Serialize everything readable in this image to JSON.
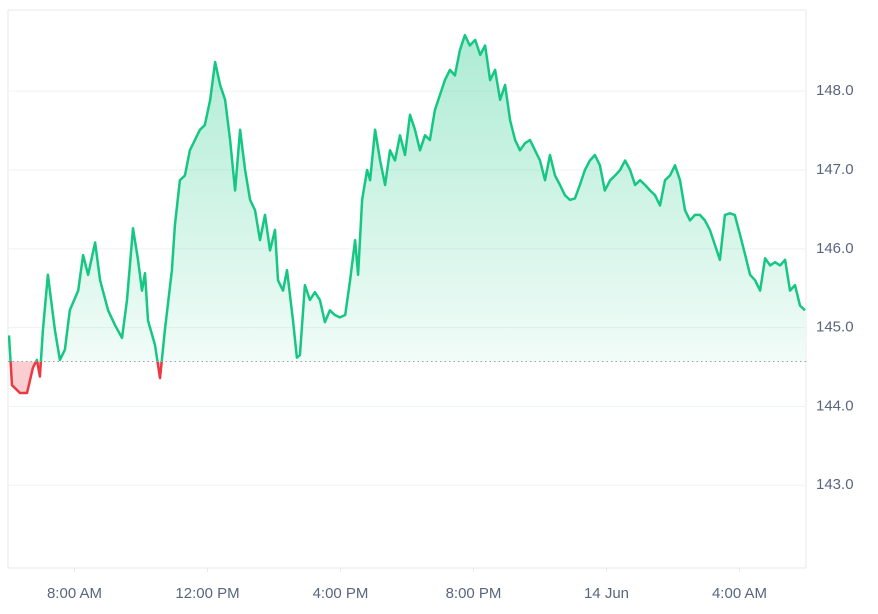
{
  "chart_data": {
    "type": "line",
    "x": [
      6.03,
      6.12,
      6.36,
      6.57,
      6.75,
      6.87,
      6.96,
      7.05,
      7.2,
      7.41,
      7.56,
      7.71,
      7.86,
      8.11,
      8.26,
      8.41,
      8.62,
      8.77,
      9.01,
      9.22,
      9.43,
      9.58,
      9.76,
      9.91,
      10.03,
      10.12,
      10.21,
      10.42,
      10.57,
      10.72,
      10.93,
      11.02,
      11.17,
      11.32,
      11.47,
      11.62,
      11.77,
      11.92,
      12.08,
      12.23,
      12.38,
      12.53,
      12.68,
      12.83,
      12.98,
      13.13,
      13.28,
      13.43,
      13.58,
      13.73,
      13.88,
      14.03,
      14.12,
      14.27,
      14.39,
      14.57,
      14.69,
      14.78,
      14.93,
      15.08,
      15.23,
      15.38,
      15.53,
      15.68,
      15.83,
      15.98,
      16.14,
      16.29,
      16.44,
      16.53,
      16.65,
      16.8,
      16.89,
      17.04,
      17.19,
      17.34,
      17.49,
      17.64,
      17.79,
      17.94,
      18.09,
      18.24,
      18.39,
      18.54,
      18.69,
      18.84,
      18.99,
      19.14,
      19.29,
      19.44,
      19.59,
      19.74,
      19.89,
      20.05,
      20.2,
      20.35,
      20.5,
      20.65,
      20.8,
      20.95,
      21.1,
      21.25,
      21.4,
      21.55,
      21.7,
      21.85,
      22.0,
      22.15,
      22.3,
      22.45,
      22.6,
      22.75,
      22.9,
      23.05,
      23.2,
      23.35,
      23.5,
      23.65,
      23.8,
      23.95,
      24.11,
      24.26,
      24.41,
      24.56,
      24.71,
      24.86,
      25.01,
      25.16,
      25.31,
      25.46,
      25.61,
      25.76,
      25.91,
      26.06,
      26.21,
      26.36,
      26.51,
      26.66,
      26.81,
      26.96,
      27.11,
      27.26,
      27.41,
      27.56,
      27.71,
      27.86,
      28.02,
      28.17,
      28.32,
      28.47,
      28.62,
      28.77,
      28.92,
      29.07,
      29.22,
      29.37,
      29.52,
      29.67,
      29.82,
      29.97
    ],
    "series": [
      {
        "color": "#16c784",
        "values": [
          144.9,
          144.27,
          144.17,
          144.17,
          144.49,
          144.59,
          144.38,
          144.97,
          145.67,
          144.97,
          144.59,
          144.72,
          145.22,
          145.47,
          145.92,
          145.67,
          146.08,
          145.6,
          145.22,
          145.03,
          144.87,
          145.35,
          146.26,
          145.86,
          145.47,
          145.69,
          145.09,
          144.78,
          144.36,
          144.97,
          145.73,
          146.3,
          146.87,
          146.93,
          147.25,
          147.38,
          147.51,
          147.57,
          147.89,
          148.37,
          148.08,
          147.89,
          147.38,
          146.74,
          147.51,
          147.0,
          146.62,
          146.49,
          146.11,
          146.43,
          145.98,
          146.24,
          145.6,
          145.47,
          145.73,
          145.09,
          144.62,
          144.65,
          145.54,
          145.35,
          145.45,
          145.35,
          145.07,
          145.22,
          145.16,
          145.13,
          145.16,
          145.6,
          146.11,
          145.67,
          146.62,
          147.0,
          146.87,
          147.51,
          147.12,
          146.81,
          147.25,
          147.12,
          147.44,
          147.19,
          147.7,
          147.51,
          147.25,
          147.44,
          147.38,
          147.76,
          147.95,
          148.14,
          148.27,
          148.2,
          148.52,
          148.71,
          148.58,
          148.65,
          148.46,
          148.58,
          148.14,
          148.27,
          147.89,
          148.08,
          147.63,
          147.38,
          147.25,
          147.34,
          147.38,
          147.25,
          147.12,
          146.87,
          147.19,
          146.93,
          146.81,
          146.68,
          146.62,
          146.64,
          146.81,
          147.0,
          147.12,
          147.19,
          147.06,
          146.74,
          146.87,
          146.93,
          147.0,
          147.12,
          147.0,
          146.81,
          146.87,
          146.81,
          146.74,
          146.68,
          146.55,
          146.87,
          146.93,
          147.06,
          146.87,
          146.49,
          146.36,
          146.43,
          146.43,
          146.36,
          146.24,
          146.05,
          145.86,
          146.43,
          146.45,
          146.43,
          146.17,
          145.92,
          145.67,
          145.6,
          145.47,
          145.88,
          145.79,
          145.83,
          145.79,
          145.86,
          145.47,
          145.54,
          145.28,
          145.22
        ]
      }
    ],
    "reference_line": 144.57,
    "below_color": "#ea3943",
    "xlim": [
      6,
      30
    ],
    "xticks": [
      {
        "value": 8,
        "label": "8:00 AM"
      },
      {
        "value": 12,
        "label": "12:00 PM"
      },
      {
        "value": 16,
        "label": "4:00 PM"
      },
      {
        "value": 20,
        "label": "8:00 PM"
      },
      {
        "value": 24,
        "label": "14 Jun"
      },
      {
        "value": 28,
        "label": "4:00 AM"
      }
    ],
    "ylim": [
      141.95,
      149.03
    ],
    "yticks": [
      {
        "value": 143,
        "label": "143.0"
      },
      {
        "value": 144,
        "label": "144.0"
      },
      {
        "value": 145,
        "label": "145.0"
      },
      {
        "value": 146,
        "label": "146.0"
      },
      {
        "value": 147,
        "label": "147.0"
      },
      {
        "value": 148,
        "label": "148.0"
      }
    ],
    "grid": true
  }
}
